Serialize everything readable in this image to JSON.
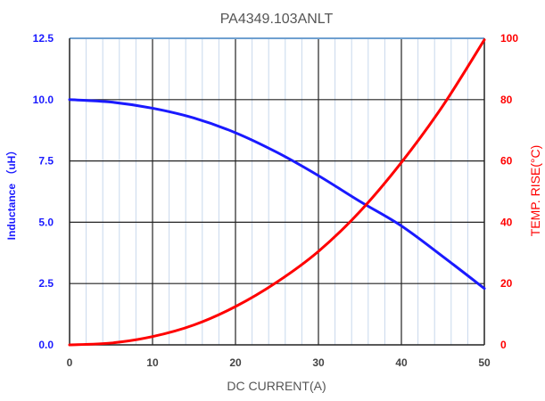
{
  "chart_data": {
    "type": "line",
    "title": "PA4349.103ANLT",
    "xlabel": "DC CURRENT(A)",
    "ylabel_left": "Inductance （uH）",
    "ylabel_right": "TEMP. RISE(°C)",
    "xlim": [
      0,
      50
    ],
    "ylim_left": [
      0,
      12.5
    ],
    "ylim_right": [
      0,
      100
    ],
    "x_ticks": [
      "0",
      "10",
      "20",
      "30",
      "40",
      "50"
    ],
    "y_left_ticks": [
      "0.0",
      "2.5",
      "5.0",
      "7.5",
      "10.0",
      "12.5"
    ],
    "y_right_ticks": [
      "0",
      "20",
      "40",
      "60",
      "80",
      "100"
    ],
    "grid": true,
    "colors": {
      "inductance": "#1a1aff",
      "temp_rise": "#ff0000",
      "major_grid": "#222222",
      "minor_grid": "#c8d8ec",
      "top_border": "#6fa0d0"
    },
    "series": [
      {
        "axis": "left",
        "x": [
          0,
          5,
          10,
          15,
          20,
          25,
          30,
          35,
          40,
          45,
          50
        ],
        "values": [
          10.0,
          9.9,
          9.65,
          9.25,
          8.65,
          7.85,
          6.9,
          5.85,
          4.85,
          3.6,
          2.3
        ]
      },
      {
        "axis": "right",
        "x": [
          0,
          5,
          10,
          15,
          20,
          25,
          30,
          35,
          40,
          45,
          50
        ],
        "values": [
          0,
          0.6,
          2.7,
          6.5,
          12.5,
          20.5,
          30.5,
          43.5,
          59.5,
          78,
          99.5
        ]
      }
    ]
  }
}
